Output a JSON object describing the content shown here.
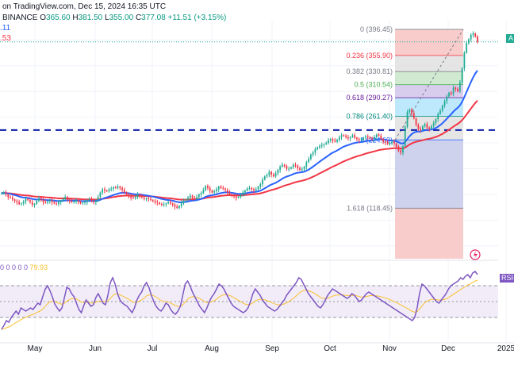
{
  "header": {
    "line1": "on TradingView.com, Dec 15, 2024 16:35 UTC",
    "exchange": "BINANCE",
    "ohlc": {
      "open_label": "O",
      "open": "365.60",
      "high_label": "H",
      "high": "381.50",
      "low_label": "L",
      "low": "355.00",
      "close_label": "C",
      "close": "377.08",
      "change": "+11.51 (+3.15%)"
    },
    "ma1_fragment": ".11",
    "ma2_fragment": ".53",
    "rsi_values": "0 0 0 0 0",
    "rsi_last": "79.93"
  },
  "badges": {
    "price_badge": "A",
    "rsi_badge": "RSI-"
  },
  "colors": {
    "candle_up": "#22ab94",
    "candle_down": "#f23645",
    "ema20": "#2962ff",
    "ema50": "#f23645",
    "support_line": "#0d1ca8",
    "rsi_line": "#7e57c2",
    "rsi_signal": "#fbc02d",
    "rsi_band": "#ede7f6",
    "fib_236_382": "#e0e0e0",
    "fib_382_5": "#c8e6c9",
    "fib_5_618": "#d1c4e9",
    "fib_618_786": "#b3e5fc",
    "fib_786_1": "#e0e0e0",
    "fib_0_236": "#f8c3c3",
    "fib_1_1618": "#c5cae9",
    "fib_below": "#f8c3c3"
  },
  "chart_data": [
    {
      "type": "candlestick",
      "title": "",
      "xlabel": "",
      "ylabel": "",
      "ylim": [
        40,
        410
      ],
      "grid": true,
      "x_ticks": [
        "May",
        "Jun",
        "Jul",
        "Aug",
        "Sep",
        "Oct",
        "Nov",
        "Dec",
        "2025"
      ],
      "support_level": 240,
      "fibonacci_levels": [
        {
          "ratio": "0",
          "value": 396.45,
          "label": "0 (396.45)"
        },
        {
          "ratio": "0.236",
          "value": 355.9,
          "label": "0.236 (355.90)"
        },
        {
          "ratio": "0.382",
          "value": 330.81,
          "label": "0.382 (330.81)"
        },
        {
          "ratio": "0.5",
          "value": 310.54,
          "label": "0.5 (310.54)"
        },
        {
          "ratio": "0.618",
          "value": 290.27,
          "label": "0.618 (290.27)"
        },
        {
          "ratio": "0.786",
          "value": 261.4,
          "label": "0.786 (261.40)"
        },
        {
          "ratio": "1",
          "value": 224.63,
          "label": "1 (224.63)"
        },
        {
          "ratio": "1.618",
          "value": 118.45,
          "label": "1.618 (118.45)"
        }
      ],
      "close_series": [
        142,
        143,
        140,
        136,
        135,
        132,
        130,
        128,
        125,
        126,
        129,
        133,
        131,
        128,
        124,
        125,
        130,
        134,
        132,
        128,
        127,
        129,
        131,
        128,
        126,
        125,
        128,
        130,
        133,
        136,
        132,
        130,
        128,
        129,
        131,
        129,
        126,
        127,
        128,
        131,
        133,
        130,
        128,
        130,
        136,
        143,
        148,
        146,
        145,
        148,
        149,
        151,
        150,
        152,
        150,
        147,
        143,
        140,
        137,
        135,
        134,
        136,
        140,
        138,
        135,
        133,
        134,
        133,
        131,
        130,
        128,
        127,
        125,
        124,
        125,
        126,
        128,
        126,
        124,
        121,
        119,
        122,
        128,
        130,
        132,
        135,
        138,
        135,
        133,
        136,
        140,
        142,
        147,
        153,
        150,
        146,
        143,
        145,
        148,
        152,
        150,
        149,
        147,
        143,
        140,
        138,
        137,
        135,
        136,
        140,
        143,
        146,
        149,
        150,
        148,
        146,
        148,
        152,
        156,
        163,
        168,
        170,
        175,
        171,
        168,
        173,
        178,
        183,
        186,
        184,
        180,
        180,
        182,
        186,
        185,
        181,
        178,
        179,
        183,
        190,
        195,
        202,
        205,
        210,
        213,
        215,
        217,
        218,
        220,
        224,
        226,
        224,
        222,
        225,
        229,
        232,
        231,
        229,
        227,
        229,
        232,
        228,
        226,
        224,
        225,
        228,
        230,
        229,
        227,
        226,
        229,
        233,
        231,
        226,
        222,
        221,
        218,
        220,
        222,
        219,
        214,
        208,
        205,
        215,
        245,
        268,
        272,
        266,
        258,
        248,
        242,
        240,
        246,
        249,
        244,
        242,
        246,
        251,
        257,
        265,
        270,
        278,
        285,
        292,
        298,
        296,
        306,
        304,
        300,
        314,
        336,
        360,
        375,
        381,
        388,
        390,
        385,
        377
      ]
    },
    {
      "type": "line",
      "title": "",
      "ylim": [
        0,
        100
      ],
      "bands": [
        30,
        50,
        70
      ],
      "series": [
        {
          "name": "",
          "values": [
            15,
            20,
            26,
            24,
            30,
            34,
            38,
            34,
            42,
            40,
            38,
            40,
            42,
            40,
            44,
            48,
            46,
            56,
            65,
            70,
            64,
            56,
            47,
            42,
            38,
            42,
            55,
            68,
            66,
            60,
            56,
            48,
            40,
            36,
            45,
            52,
            48,
            44,
            46,
            55,
            60,
            54,
            48,
            46,
            58,
            74,
            80,
            72,
            60,
            52,
            48,
            46,
            44,
            40,
            36,
            42,
            52,
            58,
            62,
            70,
            74,
            68,
            58,
            50,
            44,
            40,
            38,
            42,
            48,
            46,
            40,
            36,
            34,
            38,
            44,
            58,
            72,
            76,
            70,
            62,
            56,
            50,
            44,
            40,
            36,
            42,
            50,
            56,
            60,
            66,
            72,
            70,
            66,
            60,
            54,
            48,
            44,
            42,
            40,
            38,
            36,
            38,
            42,
            50,
            60,
            66,
            62,
            58,
            52,
            48,
            44,
            42,
            40,
            38,
            40,
            44,
            48,
            52,
            58,
            62,
            66,
            70,
            74,
            80,
            78,
            72,
            66,
            60,
            56,
            52,
            48,
            44,
            42,
            46,
            52,
            58,
            62,
            66,
            64,
            62,
            60,
            58,
            56,
            54,
            56,
            60,
            58,
            54,
            50,
            52,
            56,
            60,
            62,
            60,
            58,
            56,
            54,
            52,
            50,
            48,
            46,
            44,
            42,
            40,
            38,
            36,
            34,
            32,
            30,
            28,
            26,
            30,
            42,
            60,
            72,
            70,
            66,
            62,
            58,
            54,
            50,
            48,
            52,
            56,
            60,
            66,
            70,
            72,
            74,
            76,
            80,
            78,
            82,
            84,
            80,
            86,
            88,
            84
          ]
        }
      ]
    }
  ]
}
